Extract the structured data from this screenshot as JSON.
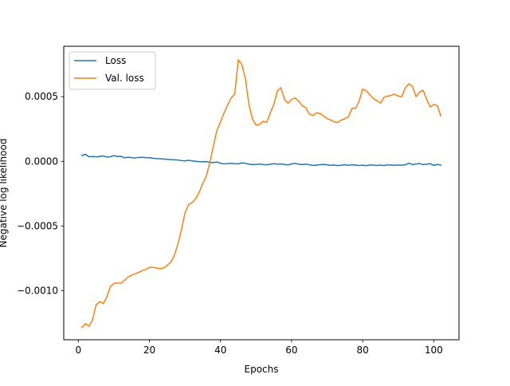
{
  "chart_data": {
    "type": "line",
    "title": "",
    "xlabel": "Epochs",
    "ylabel": "Negative log likelihood",
    "xlim": [
      -4.1,
      107.1
    ],
    "ylim": [
      -0.00138,
      0.00089
    ],
    "xticks": [
      0,
      20,
      40,
      60,
      80,
      100
    ],
    "yticks": [
      -0.001,
      -0.0005,
      0.0,
      0.0005
    ],
    "xtick_labels": [
      "0",
      "20",
      "40",
      "60",
      "80",
      "100"
    ],
    "ytick_labels": [
      "−0.0010",
      "−0.0005",
      "0.0000",
      "0.0005"
    ],
    "grid": false,
    "legend_position": "upper-left",
    "series": [
      {
        "name": "Loss",
        "color": "#1f77b4",
        "x": [
          1,
          2,
          3,
          4,
          5,
          6,
          7,
          8,
          9,
          10,
          11,
          12,
          13,
          14,
          15,
          16,
          17,
          18,
          19,
          20,
          21,
          22,
          23,
          24,
          25,
          26,
          27,
          28,
          29,
          30,
          31,
          32,
          33,
          34,
          35,
          36,
          37,
          38,
          39,
          40,
          41,
          42,
          43,
          44,
          45,
          46,
          47,
          48,
          49,
          50,
          51,
          52,
          53,
          54,
          55,
          56,
          57,
          58,
          59,
          60,
          61,
          62,
          63,
          64,
          65,
          66,
          67,
          68,
          69,
          70,
          71,
          72,
          73,
          74,
          75,
          76,
          77,
          78,
          79,
          80,
          81,
          82,
          83,
          84,
          85,
          86,
          87,
          88,
          89,
          90,
          91,
          92,
          93,
          94,
          95,
          96,
          97,
          98,
          99,
          100,
          101,
          102
        ],
        "y": [
          4.5e-05,
          5.5e-05,
          3.5e-05,
          3.8e-05,
          3.4e-05,
          3.8e-05,
          4.2e-05,
          3.3e-05,
          3.6e-05,
          4.4e-05,
          3.7e-05,
          3.9e-05,
          2.7e-05,
          3.2e-05,
          2.8e-05,
          2.6e-05,
          3e-05,
          3.1e-05,
          2.9e-05,
          2.8e-05,
          2.4e-05,
          2.1e-05,
          2e-05,
          1.8e-05,
          1.6e-05,
          1.3e-05,
          1.2e-05,
          1e-05,
          6e-06,
          3e-06,
          8e-06,
          4e-06,
          0.0,
          -2e-06,
          -3e-06,
          -2e-06,
          -8e-06,
          -1e-05,
          -5e-06,
          -1.5e-05,
          -2e-05,
          -1.8e-05,
          -1.5e-05,
          -1.8e-05,
          -2e-05,
          -1.2e-05,
          -1.5e-05,
          -2.2e-05,
          -2.5e-05,
          -2.4e-05,
          -2.1e-05,
          -2.5e-05,
          -2.7e-05,
          -2.2e-05,
          -1.8e-05,
          -2.2e-05,
          -2e-05,
          -2.4e-05,
          -2.8e-05,
          -2e-05,
          -1.6e-05,
          -2.2e-05,
          -2.5e-05,
          -2.1e-05,
          -2.7e-05,
          -3.1e-05,
          -3e-05,
          -2.6e-05,
          -2.4e-05,
          -2.7e-05,
          -3.1e-05,
          -2.9e-05,
          -3.3e-05,
          -3e-05,
          -2.6e-05,
          -3.1e-05,
          -2.7e-05,
          -2.9e-05,
          -3.2e-05,
          -3e-05,
          -3.4e-05,
          -2.8e-05,
          -3e-05,
          -3.2e-05,
          -2.9e-05,
          -3.3e-05,
          -2.7e-05,
          -2.9e-05,
          -3.1e-05,
          -2.8e-05,
          -3e-05,
          -2.7e-05,
          -1.5e-05,
          -2.5e-05,
          -2.1e-05,
          -1.7e-05,
          -2.5e-05,
          -2.2e-05,
          -1.8e-05,
          -3.2e-05,
          -2.4e-05,
          -3e-05
        ]
      },
      {
        "name": "Val. loss",
        "color": "#ff7f0e",
        "x": [
          1,
          2,
          3,
          4,
          5,
          6,
          7,
          8,
          9,
          10,
          11,
          12,
          13,
          14,
          15,
          16,
          17,
          18,
          19,
          20,
          21,
          22,
          23,
          24,
          25,
          26,
          27,
          28,
          29,
          30,
          31,
          32,
          33,
          34,
          35,
          36,
          37,
          38,
          39,
          40,
          41,
          42,
          43,
          44,
          45,
          46,
          47,
          48,
          49,
          50,
          51,
          52,
          53,
          54,
          55,
          56,
          57,
          58,
          59,
          60,
          61,
          62,
          63,
          64,
          65,
          66,
          67,
          68,
          69,
          70,
          71,
          72,
          73,
          74,
          75,
          76,
          77,
          78,
          79,
          80,
          81,
          82,
          83,
          84,
          85,
          86,
          87,
          88,
          89,
          90,
          91,
          92,
          93,
          94,
          95,
          96,
          97,
          98,
          99,
          100,
          101,
          102
        ],
        "y": [
          -0.001285,
          -0.001255,
          -0.001275,
          -0.001225,
          -0.00111,
          -0.001085,
          -0.0011,
          -0.00105,
          -0.00097,
          -0.000945,
          -0.00094,
          -0.000945,
          -0.00092,
          -0.000895,
          -0.00088,
          -0.00087,
          -0.00086,
          -0.000845,
          -0.000835,
          -0.00082,
          -0.00082,
          -0.000825,
          -0.00083,
          -0.000825,
          -0.000805,
          -0.00078,
          -0.00073,
          -0.00064,
          -0.00053,
          -0.0004,
          -0.000335,
          -0.00032,
          -0.00029,
          -0.00024,
          -0.00017,
          -0.000115,
          -1e-05,
          0.00012,
          0.00024,
          0.000305,
          0.000375,
          0.000435,
          0.00049,
          0.00052,
          0.000785,
          0.00075,
          0.00064,
          0.00044,
          0.000325,
          0.00028,
          0.000285,
          0.00031,
          0.0003,
          0.000375,
          0.00044,
          0.000545,
          0.00057,
          0.00048,
          0.00045,
          0.00048,
          0.00049,
          0.000465,
          0.00043,
          0.000415,
          0.000365,
          0.000355,
          0.000375,
          0.00037,
          0.00035,
          0.00033,
          0.00032,
          0.000305,
          0.0003,
          0.00032,
          0.00033,
          0.000345,
          0.00041,
          0.00041,
          0.000465,
          0.00056,
          0.000545,
          0.000515,
          0.000485,
          0.00047,
          0.00045,
          0.000495,
          0.000505,
          0.00051,
          0.00052,
          0.000505,
          0.0005,
          0.00057,
          0.0006,
          0.00058,
          0.0005,
          0.000535,
          0.00055,
          0.00048,
          0.00042,
          0.00044,
          0.00043,
          0.00035
        ]
      }
    ]
  }
}
